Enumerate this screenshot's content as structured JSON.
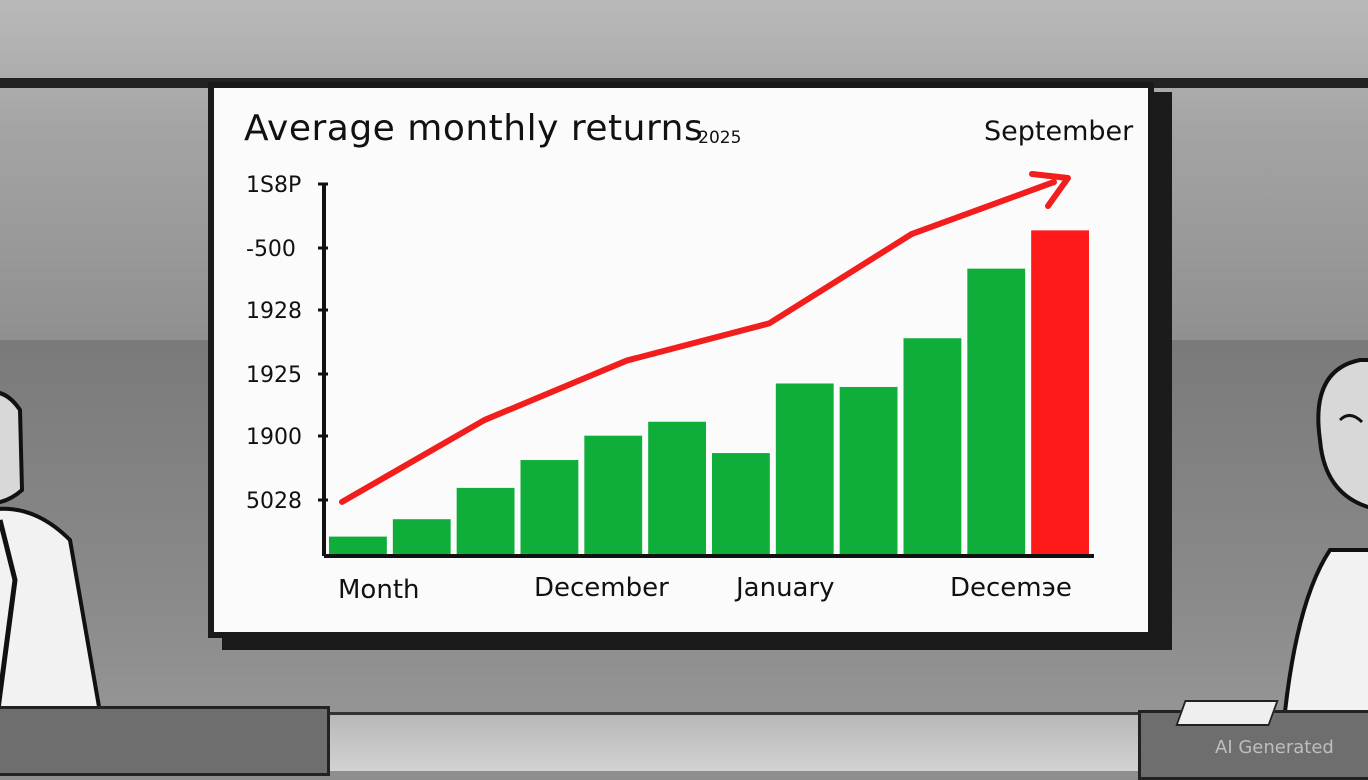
{
  "chart": {
    "title": "Average monthly returns",
    "title_suffix": "-2025",
    "annotation": "September",
    "y_ticks": [
      "1S8P",
      "-500",
      "1928",
      "1925",
      "1900",
      "5028"
    ],
    "x_labels": [
      "Month",
      "December",
      "January",
      "Decemэe"
    ]
  },
  "chart_data": {
    "type": "bar",
    "bars": [
      {
        "value": 0.05,
        "color": "#0fae3a"
      },
      {
        "value": 0.1,
        "color": "#0fae3a"
      },
      {
        "value": 0.19,
        "color": "#0fae3a"
      },
      {
        "value": 0.27,
        "color": "#0fae3a"
      },
      {
        "value": 0.34,
        "color": "#0fae3a"
      },
      {
        "value": 0.38,
        "color": "#0fae3a"
      },
      {
        "value": 0.29,
        "color": "#0fae3a"
      },
      {
        "value": 0.49,
        "color": "#0fae3a"
      },
      {
        "value": 0.48,
        "color": "#0fae3a"
      },
      {
        "value": 0.62,
        "color": "#0fae3a"
      },
      {
        "value": 0.82,
        "color": "#0fae3a"
      },
      {
        "value": 0.93,
        "color": "#ff1a1a"
      }
    ],
    "trend": [
      0.14,
      0.36,
      0.52,
      0.62,
      0.86,
      1.0
    ],
    "ylim": [
      0,
      1
    ],
    "trend_color": "#f21d1d"
  },
  "watermark": "AI Generated"
}
